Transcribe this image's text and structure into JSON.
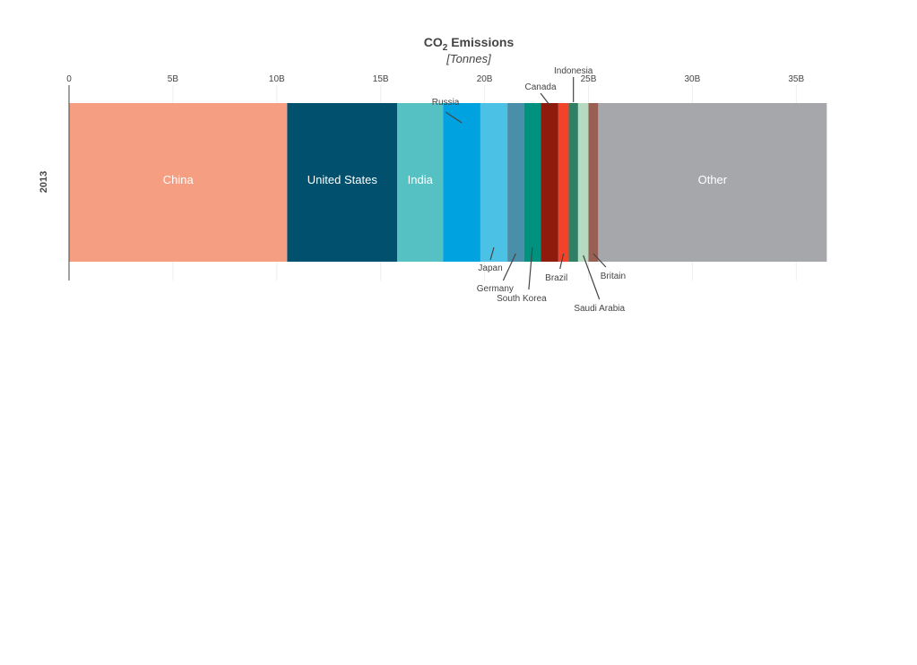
{
  "chart_data": {
    "type": "bar",
    "orientation": "horizontal",
    "stacked": true,
    "title": "CO",
    "title_subscript": "2",
    "title_rest": " Emissions",
    "subtitle": "[Tonnes]",
    "category": "2013",
    "xlim": [
      0,
      36800000000
    ],
    "x_ticks": [
      0,
      5000000000,
      10000000000,
      15000000000,
      20000000000,
      25000000000,
      30000000000,
      35000000000
    ],
    "x_tick_labels": [
      "0",
      "5B",
      "10B",
      "15B",
      "20B",
      "25B",
      "30B",
      "35B"
    ],
    "grid": true,
    "series": [
      {
        "name": "China",
        "value": 10500000000,
        "color": "#f59e82",
        "label": "China",
        "label_mode": "inside"
      },
      {
        "name": "United States",
        "value": 5300000000,
        "color": "#00506e",
        "label": "United States",
        "label_mode": "inside"
      },
      {
        "name": "India",
        "value": 2200000000,
        "color": "#56c1c3",
        "label": "India",
        "label_mode": "inside"
      },
      {
        "name": "Russia",
        "value": 1800000000,
        "color": "#00a3e0",
        "label": "Russia",
        "label_mode": "above"
      },
      {
        "name": "Japan",
        "value": 1300000000,
        "color": "#4cc1e6",
        "label": "Japan",
        "label_mode": "below"
      },
      {
        "name": "Germany",
        "value": 800000000,
        "color": "#4a8fa9",
        "label": "Germany",
        "label_mode": "below"
      },
      {
        "name": "South Korea",
        "value": 800000000,
        "color": "#00917f",
        "label": "South Korea",
        "label_mode": "below"
      },
      {
        "name": "Canada",
        "value": 850000000,
        "color": "#8e1b0c",
        "label": "Canada",
        "label_mode": "above"
      },
      {
        "name": "Brazil",
        "value": 500000000,
        "color": "#f2432a",
        "label": "Brazil",
        "label_mode": "below"
      },
      {
        "name": "Indonesia",
        "value": 450000000,
        "color": "#2e7f63",
        "label": "Indonesia",
        "label_mode": "above"
      },
      {
        "name": "Saudi Arabia",
        "value": 500000000,
        "color": "#b6d9c2",
        "label": "Saudi Arabia",
        "label_mode": "below"
      },
      {
        "name": "Britain",
        "value": 470000000,
        "color": "#9a5f53",
        "label": "Britain",
        "label_mode": "below"
      },
      {
        "name": "Other",
        "value": 11000000000,
        "color": "#a6a7aa",
        "label": "Other",
        "label_mode": "inside"
      }
    ]
  }
}
